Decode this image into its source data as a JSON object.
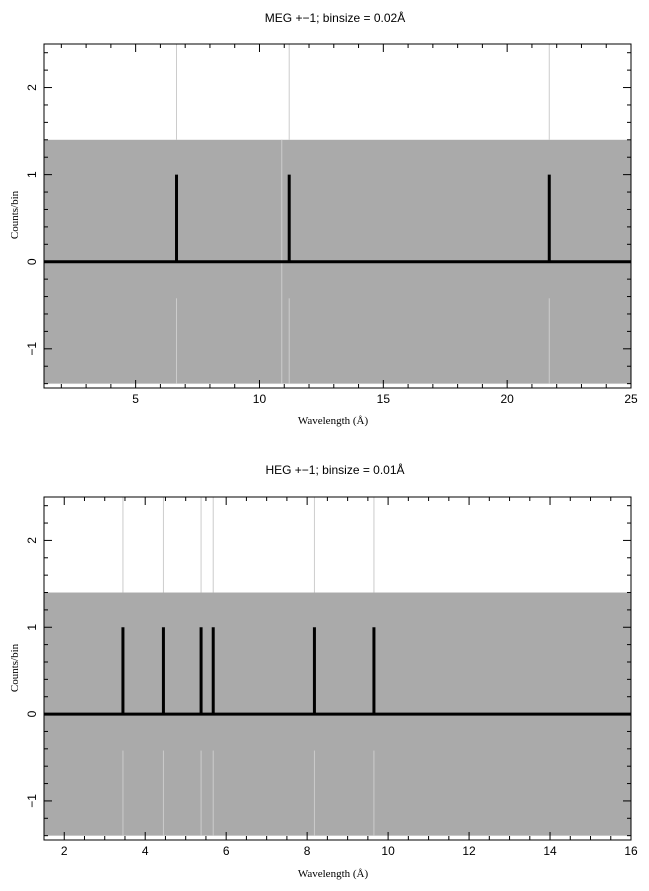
{
  "chart_data": [
    {
      "type": "bar",
      "title": "MEG +−1; binsize = 0.02Å",
      "xlabel": "Wavelength (Å)",
      "ylabel": "Counts/bin",
      "xlim": [
        1.3,
        25
      ],
      "ylim": [
        -1.45,
        2.5
      ],
      "xticks_major": [
        5,
        10,
        15,
        20,
        25
      ],
      "xticks_minor_step": 1,
      "yticks_major": [
        -1,
        0,
        1,
        2
      ],
      "yticks_minor_step": 0.2,
      "grid": false,
      "band": [
        -1.4,
        1.4
      ],
      "band_color": "#aaaaaa",
      "marker_color": "#cccccc",
      "line_color": "#000000",
      "x": [
        6.65,
        11.2,
        21.7
      ],
      "values": [
        1,
        1,
        1
      ],
      "markers": [
        6.65,
        11.2,
        21.7
      ],
      "band_markers": [
        10.9
      ]
    },
    {
      "type": "bar",
      "title": "HEG +−1; binsize = 0.01Å",
      "xlabel": "Wavelength (Å)",
      "ylabel": "Counts/bin",
      "xlim": [
        1.5,
        16
      ],
      "ylim": [
        -1.45,
        2.5
      ],
      "xticks_major": [
        2,
        4,
        6,
        8,
        10,
        12,
        14,
        16
      ],
      "xticks_minor_step": 0.5,
      "yticks_major": [
        -1,
        0,
        1,
        2
      ],
      "yticks_minor_step": 0.2,
      "grid": false,
      "band": [
        -1.4,
        1.4
      ],
      "band_color": "#aaaaaa",
      "marker_color": "#cccccc",
      "line_color": "#000000",
      "x": [
        3.45,
        4.45,
        5.38,
        5.68,
        8.18,
        9.65
      ],
      "values": [
        1,
        1,
        1,
        1,
        1,
        1
      ],
      "markers": [
        3.45,
        4.45,
        5.38,
        5.68,
        8.18,
        9.65
      ],
      "band_markers": []
    }
  ]
}
